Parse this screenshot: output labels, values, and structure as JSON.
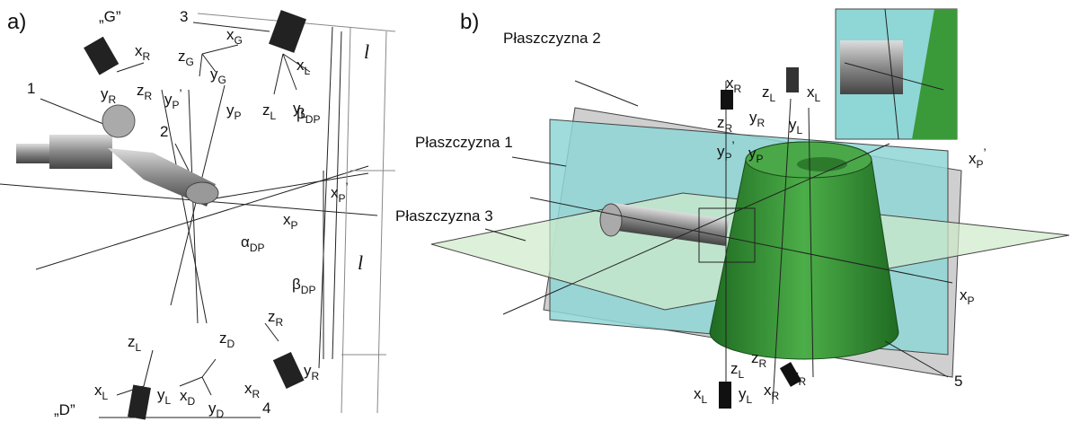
{
  "panel_a": {
    "label": "a)",
    "items": [
      {
        "main": "„G”"
      },
      {
        "main": "1"
      },
      {
        "main": "2"
      },
      {
        "main": "3"
      },
      {
        "main": "4"
      },
      {
        "main": "„D”"
      },
      {
        "main": "x",
        "sub": "R"
      },
      {
        "main": "y",
        "sub": "R"
      },
      {
        "main": "z",
        "sub": "R"
      },
      {
        "main": "z",
        "sub": "G"
      },
      {
        "main": "x",
        "sub": "G"
      },
      {
        "main": "y",
        "sub": "G"
      },
      {
        "main": "y",
        "sub": "P",
        "prime": "’"
      },
      {
        "main": "y",
        "sub": "P"
      },
      {
        "main": "z",
        "sub": "L"
      },
      {
        "main": "y",
        "sub": "L"
      },
      {
        "main": "x",
        "sub": "L"
      },
      {
        "main": "β",
        "sub": "DP"
      },
      {
        "main": "x",
        "sub": "P",
        "prime": "’"
      },
      {
        "main": "x",
        "sub": "P"
      },
      {
        "main": "α",
        "sub": "DP"
      },
      {
        "main": "β",
        "sub": "DP"
      },
      {
        "main": "z",
        "sub": "R"
      },
      {
        "main": "z",
        "sub": "D"
      },
      {
        "main": "z",
        "sub": "L"
      },
      {
        "main": "x",
        "sub": "L"
      },
      {
        "main": "y",
        "sub": "L"
      },
      {
        "main": "x",
        "sub": "D"
      },
      {
        "main": "y",
        "sub": "D"
      },
      {
        "main": "x",
        "sub": "R"
      },
      {
        "main": "y",
        "sub": "R"
      },
      {
        "main": "l"
      },
      {
        "main": "l"
      }
    ]
  },
  "panel_b": {
    "label": "b)",
    "items": [
      {
        "main": "Płaszczyzna 2"
      },
      {
        "main": "Płaszczyzna 1"
      },
      {
        "main": "Płaszczyzna 3"
      },
      {
        "main": "x",
        "sub": "R"
      },
      {
        "main": "z",
        "sub": "R"
      },
      {
        "main": "y",
        "sub": "R"
      },
      {
        "main": "y",
        "sub": "P",
        "prime": "’"
      },
      {
        "main": "y",
        "sub": "P"
      },
      {
        "main": "z",
        "sub": "L"
      },
      {
        "main": "x",
        "sub": "L"
      },
      {
        "main": "y",
        "sub": "L"
      },
      {
        "main": "x",
        "sub": "P",
        "prime": "’"
      },
      {
        "main": "x",
        "sub": "P"
      },
      {
        "main": "5"
      },
      {
        "main": "z",
        "sub": "L"
      },
      {
        "main": "z",
        "sub": "R"
      },
      {
        "main": "x",
        "sub": "R"
      },
      {
        "main": "y",
        "sub": "R"
      },
      {
        "main": "x",
        "sub": "L"
      },
      {
        "main": "y",
        "sub": "L"
      }
    ]
  }
}
